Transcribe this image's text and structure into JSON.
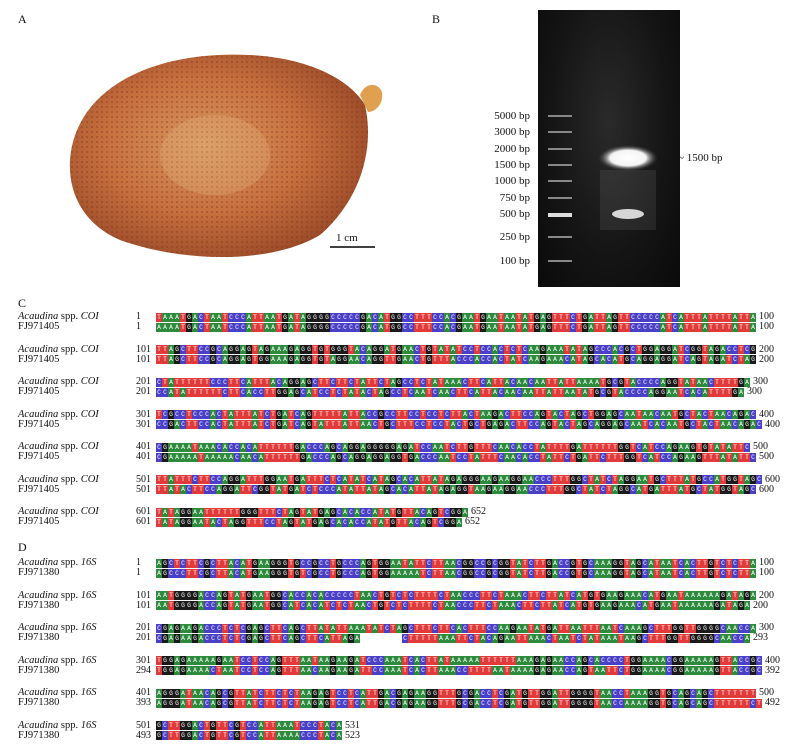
{
  "panels": {
    "A": "A",
    "B": "B",
    "C": "C",
    "D": "D"
  },
  "panelA": {
    "scale_bar": "1 cm"
  },
  "panelB": {
    "ladder": [
      "5000 bp",
      "3000 bp",
      "2000 bp",
      "1500 bp",
      "1000 bp",
      "750 bp",
      "500 bp",
      "250 bp",
      "100 bp"
    ],
    "product_label": "~ 1500 bp"
  },
  "species_label": "Acaudina",
  "spp": "spp.",
  "coi": {
    "gene": "COI",
    "ref": "FJ971405",
    "rows": [
      {
        "s1": "1",
        "e1": "100",
        "s2": "1",
        "e2": "100",
        "q": "TAAATGACTAATCCCATTAATGATAGGGGCCCCCGACATGGCCTTTCCACGAATGAATAATATGAGTTTCTGATTAGTTCCCCCATCATTTATTTTATTA",
        "r": "AAAATGACTAATCCCATTAATGATAGGGGCCCCCGACATGGCCTTTCCACGAATGAATAATATGAGTTTCTGATTAGTTCCCCCATCATTTATTTTATTA"
      },
      {
        "s1": "101",
        "e1": "200",
        "s2": "101",
        "e2": "200",
        "q": "TTAGCTTCCGCAGGAGTAGAAAGAGGTGTGGGTACAGGATGAACTGTATATCCTCCACTCTCAAGAAATATAGCCCACGCTGGAGGATCGGTAGACCTCG",
        "r": "TTAGCTTCCGCAGGAGTGGAAAGAGGTGTAGGAACAGGTTGAACTGTTTACCCACCACTATCAAGAAACATAGCACATGCAGGAGGATCAGTAGATCTAG"
      },
      {
        "s1": "201",
        "e1": "300",
        "s2": "201",
        "e2": "300",
        "q": "CTATTTTTTCCCTTCATTTACAGGAGCTTCTTCTATTCTAGCCTCTATAAACTTCATTACAACAATTATTAAAATGCGTACCCCAGGTATAACTTTTGA",
        "r": "CCATATTTTTTCTTCACCTTGGAGCATCCTCTATACTAGCCTCAATCAACTTCATTACAACAATTATTAATATGCGTACCCCAGGAATCACATTTTGA"
      },
      {
        "s1": "301",
        "e1": "400",
        "s2": "301",
        "e2": "400",
        "q": "TCGCCTCCCACTATTTATCTGATCAGTTTTTATTACCGCCTTCCTCCTCTTACTAAGACTTCCAGTACTAGCTGGAGCAATAACAATGCTACTAACAGAC",
        "r": "CCGACTTCCACTATTTATCTGATCAGTATTTATTAACTGCTTTCCTCCTACTGCTGAGACTTCCAGTACTAGCAGGAGCAATCACAATGCTACTAACAGAC"
      },
      {
        "s1": "401",
        "e1": "500",
        "s2": "401",
        "e2": "500",
        "q": "CGAAAATAAACACCACATTTTTTGACCCAGCAGGAGGGGGAGATCCAATCTTGTTTCAACACCTATTTTGATTTTTTGGTCATCCAGAAGTGTATATTC",
        "r": "CGAAAAATAAAAACAACATTTTTTGACCCAGCAGGAGGAGGTGACCCAATCCTATTTCAACACCTATTCTGATTCTTTGGTCATCCAGAAGTTTATATTC"
      },
      {
        "s1": "501",
        "e1": "600",
        "s2": "501",
        "e2": "600",
        "q": "TTATTTCTTCCAGGATTTGGAATGATTTCTCATATCATAGCACATTATAGAGGGAAGAAGGAACCCTTTGGCTATCTAGGAATGCTTTATGCCATGGTAGC",
        "r": "TTATACTTCCAGGATTCGGTATGATCTCCCATATTATAGCACATTATAGAGGTAAGAAGGAACCCTTTGGCTATCTAGGCATGATTTATGCTATGGTAGC"
      },
      {
        "s1": "601",
        "e1": "652",
        "s2": "601",
        "e2": "652",
        "q": "TATAGGAATTTTTTGGGTTTCTAGTATGAGCACACCATATGTTACAGTCGGA",
        "r": "TATAGGAATACTAGGTTTCCTAGTATGAGCACACCATATGTTACAGTCGGA"
      }
    ]
  },
  "r16s": {
    "gene": "16S",
    "ref": "FJ971380",
    "rows": [
      {
        "s1": "1",
        "e1": "100",
        "s2": "1",
        "e2": "100",
        "q": "AGCTCTTCGCTTACATGAAGGGTGCCGCCTGCCCAGTGGAATATTCTTAACGGCCGCGGTATCTTGACCGTGCAAAGGTAGCATAATCACTTGTCTCTTA",
        "r": "AGCCCTTCGCTTACATGAAGGGTGTCGCCTGCCCAGTGGAAAAATCTTAACGGCCGCGGTATCTTGACCGTGCAAAGGTAGCATAATCACTTGTCTCTTA"
      },
      {
        "s1": "101",
        "e1": "200",
        "s2": "101",
        "e2": "200",
        "q": "AATGGGGACCAGTATGAATGGCACCACACCCCCTAACTGTCTCTTTTCTAACCCTTCTAAACTTCTTATCATGTGAAGAAACATGAATAAAAAAGATAGA",
        "r": "AATGGGGACCAGTATGAATGGCATCACATCTCTAACTGTCTCTTTTCTAACCCTTCTAAACTTCTTATCATGTGAAGAAACATGAATAAAAAAGATAGA"
      },
      {
        "s1": "201",
        "e1": "300",
        "s2": "201",
        "e2": "293",
        "q": "CGAGAAGACCCTCTCGAGCTTCAGCTTATATTAAATATCTAGCTTTCTTCACTTTCCAAGAATATGATTAATTTAATCAAAGCTTTGGTTGGGGCAACCA",
        "r": "CGAGAAGACCCTCTCGAGCTTCAGCTTCATTAGA-------CTTTTTAAATTCTACAGAATTAAACTAATCTATAAATAAGCTTTGGTTGGGGCAACCA"
      },
      {
        "s1": "301",
        "e1": "400",
        "s2": "294",
        "e2": "392",
        "q": "TGGAGAAAAAGAATCCTCCAGTTTAATAAGAAGATCCCAAATCACTTATAAAAATTTTTTAAAGAGAACCAGCACCCCTGGAAAACGGAAAAAGTTACCGC",
        "r": "TGGAGAAAACTAATCCTCCAGTTTAACAAGAAGATTCCAAATCACTTAAACCTTTTAATAAAAGAGAACCAGTAATTCTGGAAAACGGAAAAAGTTACCGC"
      },
      {
        "s1": "401",
        "e1": "500",
        "s2": "393",
        "e2": "492",
        "q": "AGGGATAACAGCGTTATCTTCTCTAAGAGTCCTCATTGACGAGAAGGTTTGCGACCTCGATGTTGGATTGGGGTAACCTAAAGGTGCAGCAGCTTTTTTT",
        "r": "AGGGATAACAGCGTTATCTTCTCTAAGAGTCCTCATTGACGAGAAGGTTTGCGACCTCGATGTTGGATTGGGGTAACCAAAAGGTGCAGCAGCTTTTTTCT"
      },
      {
        "s1": "501",
        "e1": "531",
        "s2": "493",
        "e2": "523",
        "q": "GCTTGGACTGTTCGTCCATTAAATCCCTACA",
        "r": "GCTTGGACTGTTCGTCCATTAAAACCCTACA"
      }
    ]
  }
}
